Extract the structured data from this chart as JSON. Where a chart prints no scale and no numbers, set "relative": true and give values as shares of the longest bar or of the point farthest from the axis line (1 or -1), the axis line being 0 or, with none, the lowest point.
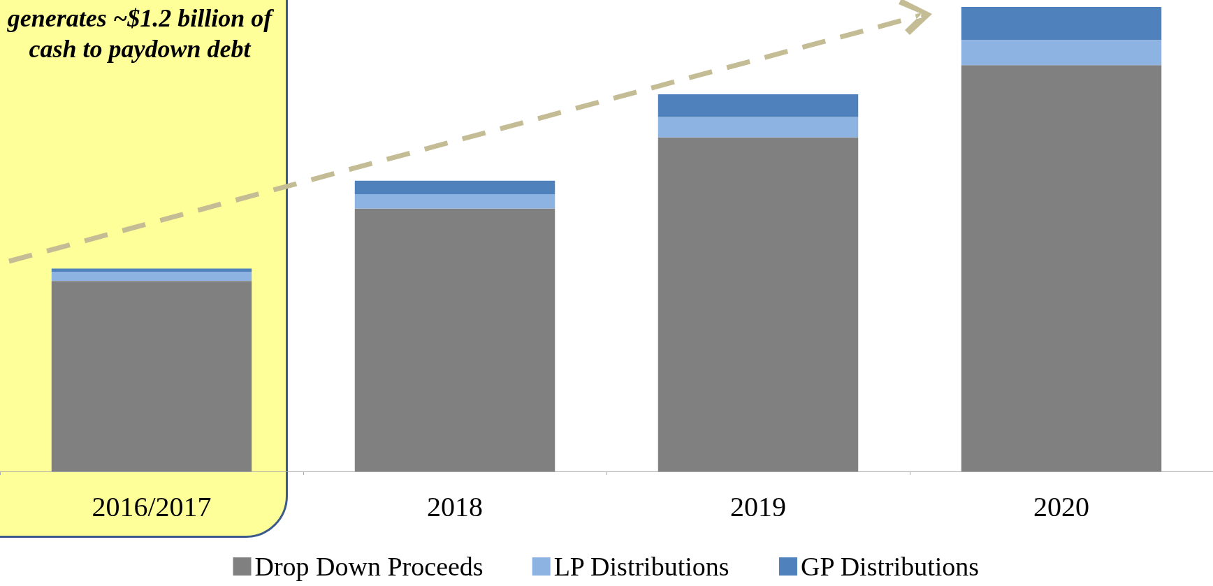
{
  "chart_data": {
    "type": "bar",
    "stacked": true,
    "relative": true,
    "legend": "bottom",
    "categories": [
      "2016/2017",
      "2018",
      "2019",
      "2020"
    ],
    "series": [
      {
        "name": "Drop Down Proceeds",
        "color": "#808080",
        "values": [
          0.41,
          0.566,
          0.719,
          0.875
        ]
      },
      {
        "name": "LP Distributions",
        "color": "#8db3e2",
        "values": [
          0.02,
          0.031,
          0.044,
          0.054
        ]
      },
      {
        "name": "GP Distributions",
        "color": "#4f81bd",
        "values": [
          0.007,
          0.029,
          0.049,
          0.071
        ]
      }
    ],
    "annotations": [
      "generates ~$1.2 billion of cash to paydown debt"
    ]
  }
}
